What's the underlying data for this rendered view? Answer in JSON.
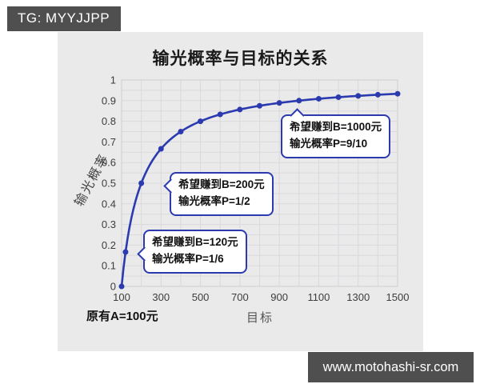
{
  "badge": {
    "text": "TG: MYYJJPP"
  },
  "footer_bar": {
    "text": "www.motohashi-sr.com"
  },
  "colors": {
    "accent": "#2b3aae",
    "panel_bg": "#eaeaea",
    "bar_bg": "#4f4f4f",
    "bar_text": "#ffffff",
    "grid": "#d9d9de",
    "plot_border": "#cfcfcf",
    "tick_text": "#3d3d3d"
  },
  "chart_data": {
    "type": "line",
    "title": "输光概率与目标的关系",
    "xlabel": "目标",
    "ylabel": "输光概率",
    "note": "原有A=100元",
    "initial_amount": 100,
    "x": [
      100,
      120,
      200,
      300,
      400,
      500,
      600,
      700,
      800,
      900,
      1000,
      1100,
      1200,
      1300,
      1400,
      1500
    ],
    "y": [
      0,
      0.1667,
      0.5,
      0.6667,
      0.75,
      0.8,
      0.8333,
      0.8571,
      0.875,
      0.8889,
      0.9,
      0.9091,
      0.9167,
      0.9231,
      0.9286,
      0.9333
    ],
    "xlim": [
      100,
      1500
    ],
    "ylim": [
      0,
      1
    ],
    "xtick_labels": [
      "100",
      "300",
      "500",
      "700",
      "900",
      "1100",
      "1300",
      "1500"
    ],
    "ytick_labels": [
      "0",
      "0.1",
      "0.2",
      "0.3",
      "0.4",
      "0.5",
      "0.6",
      "0.7",
      "0.8",
      "0.9",
      "1"
    ],
    "grid": true,
    "grid_x_step": 100,
    "grid_y_step": 0.05,
    "line_color": "#2b3aae",
    "annotations": [
      {
        "line1": "希望赚到B=200元",
        "line2": "输光概率P=1/2",
        "target_x": 200,
        "target_y": 0.5
      },
      {
        "line1": "希望赚到B=120元",
        "line2": "输光概率P=1/6",
        "target_x": 120,
        "target_y": 0.1667
      },
      {
        "line1": "希望赚到B=1000元",
        "line2": "输光概率P=9/10",
        "target_x": 1000,
        "target_y": 0.9
      }
    ]
  }
}
